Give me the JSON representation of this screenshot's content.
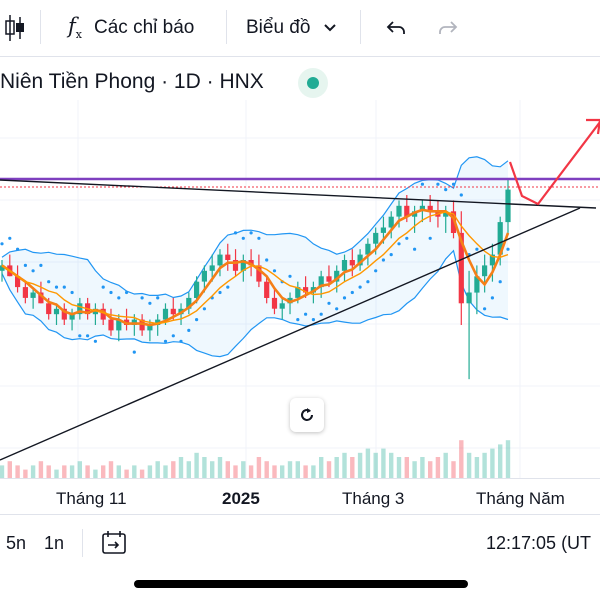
{
  "toolbar": {
    "indicators_label": "Các chỉ báo",
    "chart_type_label": "Biểu đồ"
  },
  "symbol": {
    "title": "Niên Tiền Phong · 1D · HNX"
  },
  "time_axis": {
    "labels": [
      "Tháng 11",
      "2025",
      "Tháng 3",
      "Tháng Năm"
    ]
  },
  "bottom_bar": {
    "range_5n": "5n",
    "range_1n": "1n",
    "clock": "12:17:05 (UT"
  },
  "colors": {
    "up": "#22ab94",
    "down": "#f23645",
    "ma": "#f57f17",
    "band": "#2196f3",
    "resistance": "#7e3fbf",
    "arrow": "#f23645",
    "status_dot": "#22ab94"
  },
  "chart_data": {
    "type": "candlestick",
    "candles": [
      [
        30,
        32,
        28,
        31
      ],
      [
        31,
        33,
        29,
        29
      ],
      [
        29,
        31,
        26,
        27
      ],
      [
        27,
        28,
        24,
        25
      ],
      [
        25,
        27,
        23,
        26
      ],
      [
        26,
        28,
        24,
        24
      ],
      [
        24,
        25,
        21,
        22
      ],
      [
        22,
        24,
        20,
        23
      ],
      [
        23,
        24,
        20,
        21
      ],
      [
        21,
        23,
        19,
        22
      ],
      [
        22,
        25,
        21,
        24
      ],
      [
        24,
        25,
        21,
        22
      ],
      [
        22,
        24,
        20,
        23
      ],
      [
        23,
        24,
        20,
        21
      ],
      [
        21,
        23,
        18,
        19
      ],
      [
        19,
        22,
        17,
        21
      ],
      [
        21,
        23,
        19,
        20
      ],
      [
        20,
        22,
        18,
        21
      ],
      [
        21,
        22,
        18,
        19
      ],
      [
        19,
        21,
        17,
        20
      ],
      [
        20,
        22,
        18,
        21
      ],
      [
        21,
        24,
        20,
        23
      ],
      [
        23,
        25,
        21,
        22
      ],
      [
        22,
        24,
        20,
        23
      ],
      [
        23,
        26,
        22,
        25
      ],
      [
        25,
        29,
        24,
        28
      ],
      [
        28,
        31,
        26,
        30
      ],
      [
        30,
        33,
        28,
        31
      ],
      [
        31,
        34,
        29,
        33
      ],
      [
        33,
        35,
        30,
        32
      ],
      [
        32,
        34,
        29,
        30
      ],
      [
        30,
        33,
        28,
        32
      ],
      [
        32,
        34,
        29,
        31
      ],
      [
        31,
        33,
        27,
        28
      ],
      [
        28,
        29,
        24,
        25
      ],
      [
        25,
        27,
        22,
        23
      ],
      [
        23,
        25,
        21,
        24
      ],
      [
        24,
        26,
        22,
        25
      ],
      [
        25,
        28,
        24,
        27
      ],
      [
        27,
        29,
        25,
        26
      ],
      [
        26,
        28,
        24,
        27
      ],
      [
        27,
        30,
        25,
        29
      ],
      [
        29,
        31,
        27,
        28
      ],
      [
        28,
        31,
        26,
        30
      ],
      [
        30,
        33,
        28,
        32
      ],
      [
        32,
        34,
        29,
        31
      ],
      [
        31,
        34,
        30,
        33
      ],
      [
        33,
        36,
        31,
        35
      ],
      [
        35,
        38,
        33,
        37
      ],
      [
        37,
        40,
        35,
        38
      ],
      [
        38,
        41,
        36,
        40
      ],
      [
        40,
        43,
        38,
        42
      ],
      [
        42,
        44,
        39,
        40
      ],
      [
        40,
        42,
        37,
        41
      ],
      [
        41,
        43,
        39,
        42
      ],
      [
        42,
        44,
        39,
        41
      ],
      [
        41,
        43,
        38,
        40
      ],
      [
        40,
        42,
        37,
        41
      ],
      [
        41,
        43,
        36,
        37
      ],
      [
        37,
        41,
        20,
        24
      ],
      [
        24,
        30,
        10,
        26
      ],
      [
        26,
        31,
        22,
        29
      ],
      [
        29,
        33,
        26,
        31
      ],
      [
        31,
        35,
        28,
        33
      ],
      [
        33,
        40,
        31,
        39
      ],
      [
        39,
        47,
        37,
        45
      ]
    ],
    "volumes": [
      3,
      4,
      3,
      2,
      3,
      4,
      3,
      2,
      3,
      3,
      4,
      3,
      2,
      3,
      4,
      3,
      2,
      3,
      2,
      3,
      4,
      3,
      4,
      5,
      4,
      6,
      5,
      4,
      5,
      4,
      3,
      4,
      3,
      5,
      4,
      3,
      3,
      4,
      4,
      3,
      3,
      5,
      4,
      5,
      6,
      5,
      6,
      7,
      6,
      7,
      6,
      5,
      5,
      4,
      5,
      4,
      5,
      6,
      4,
      9,
      6,
      5,
      6,
      7,
      8,
      9
    ]
  }
}
